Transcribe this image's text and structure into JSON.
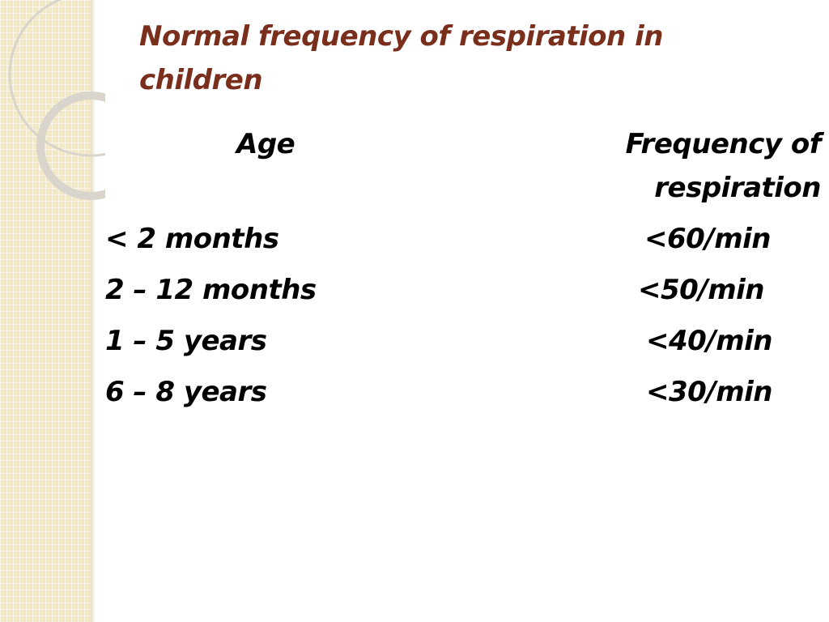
{
  "slide": {
    "title": "Normal frequency of respiration in children",
    "headers": {
      "age": "Age",
      "frequency": "Frequency of respiration"
    },
    "rows": [
      {
        "age": "< 2 months",
        "frequency": "<60/min"
      },
      {
        "age": "2 – 12 months",
        "frequency": "<50/min"
      },
      {
        "age": "1 – 5 years",
        "frequency": "<40/min"
      },
      {
        "age": "6 – 8 years",
        "frequency": "<30/min"
      }
    ]
  },
  "colors": {
    "title": "#7a2e1c",
    "text": "#000000",
    "side_panel": "#f3e9c6"
  }
}
